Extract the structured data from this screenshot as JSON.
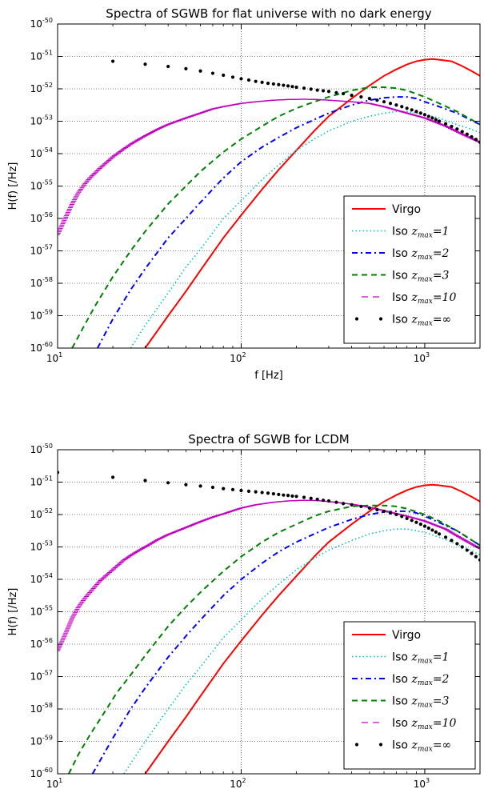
{
  "chart_data": [
    {
      "type": "line",
      "title": "Spectra of SGWB for flat universe with no dark energy",
      "xlabel": "f [Hz]",
      "ylabel": "H(f) [/Hz]",
      "xscale": "log",
      "yscale": "log",
      "xlim": [
        10,
        2000
      ],
      "ylim": [
        1e-60,
        1e-50
      ],
      "grid": true,
      "legend_position": "lower right",
      "x_ticks": [
        {
          "value": 10,
          "base": "10",
          "exp": "1"
        },
        {
          "value": 100,
          "base": "10",
          "exp": "2"
        },
        {
          "value": 1000,
          "base": "10",
          "exp": "3"
        }
      ],
      "y_ticks": [
        {
          "value": -60,
          "base": "10",
          "exp": "-60"
        },
        {
          "value": -59,
          "base": "10",
          "exp": "-59"
        },
        {
          "value": -58,
          "base": "10",
          "exp": "-58"
        },
        {
          "value": -57,
          "base": "10",
          "exp": "-57"
        },
        {
          "value": -56,
          "base": "10",
          "exp": "-56"
        },
        {
          "value": -55,
          "base": "10",
          "exp": "-55"
        },
        {
          "value": -54,
          "base": "10",
          "exp": "-54"
        },
        {
          "value": -53,
          "base": "10",
          "exp": "-53"
        },
        {
          "value": -52,
          "base": "10",
          "exp": "-52"
        },
        {
          "value": -51,
          "base": "10",
          "exp": "-51"
        },
        {
          "value": -50,
          "base": "10",
          "exp": "-50"
        }
      ],
      "series": [
        {
          "name": "Virgo",
          "legend_prefix": "Virgo",
          "legend_sub": "",
          "legend_val": "",
          "color": "#ff0000",
          "style": "solid",
          "x": [
            30,
            40,
            50,
            60,
            80,
            100,
            130,
            160,
            200,
            250,
            300,
            400,
            500,
            600,
            700,
            800,
            900,
            1000,
            1100,
            1200,
            1400,
            1600,
            1800,
            2000
          ],
          "y": [
            -60.0,
            -59.0,
            -58.25,
            -57.6,
            -56.6,
            -55.9,
            -55.1,
            -54.5,
            -53.9,
            -53.3,
            -52.85,
            -52.3,
            -51.9,
            -51.6,
            -51.4,
            -51.25,
            -51.15,
            -51.1,
            -51.08,
            -51.1,
            -51.15,
            -51.3,
            -51.45,
            -51.6
          ]
        },
        {
          "name": "Iso zmax=1",
          "legend_prefix": "Iso ",
          "legend_sub": "max",
          "legend_val": "=1",
          "color": "#00bfbf",
          "style": "dotted",
          "x": [
            25,
            30,
            40,
            50,
            60,
            80,
            100,
            130,
            160,
            200,
            250,
            300,
            400,
            500,
            600,
            700,
            800,
            900,
            1000,
            1200,
            1400,
            1700,
            2000
          ],
          "y": [
            -60.0,
            -59.3,
            -58.3,
            -57.5,
            -56.95,
            -56.0,
            -55.45,
            -54.8,
            -54.35,
            -53.9,
            -53.55,
            -53.3,
            -53.0,
            -52.85,
            -52.75,
            -52.7,
            -52.7,
            -52.75,
            -52.8,
            -52.9,
            -53.05,
            -53.2,
            -53.35
          ]
        },
        {
          "name": "Iso zmax=2",
          "legend_prefix": "Iso ",
          "legend_sub": "max",
          "legend_val": "=2",
          "color": "#0000ff",
          "style": "dashdot",
          "x": [
            16.5,
            20,
            25,
            30,
            40,
            50,
            60,
            80,
            100,
            130,
            160,
            200,
            250,
            300,
            400,
            500,
            600,
            700,
            800,
            900,
            1000,
            1200,
            1500,
            2000
          ],
          "y": [
            -60.0,
            -59.1,
            -58.2,
            -57.55,
            -56.6,
            -56.0,
            -55.5,
            -54.75,
            -54.25,
            -53.8,
            -53.5,
            -53.2,
            -52.95,
            -52.75,
            -52.5,
            -52.35,
            -52.28,
            -52.25,
            -52.25,
            -52.3,
            -52.4,
            -52.55,
            -52.75,
            -53.1
          ]
        },
        {
          "name": "Iso zmax=3",
          "legend_prefix": "Iso ",
          "legend_sub": "max",
          "legend_val": "=3",
          "color": "#008000",
          "style": "dashed",
          "x": [
            12,
            14,
            16,
            20,
            25,
            30,
            40,
            50,
            60,
            80,
            100,
            130,
            160,
            200,
            250,
            300,
            400,
            500,
            600,
            700,
            800,
            1000,
            1200,
            1500,
            2000
          ],
          "y": [
            -60.0,
            -59.3,
            -58.7,
            -57.8,
            -57.0,
            -56.4,
            -55.55,
            -55.0,
            -54.55,
            -53.95,
            -53.55,
            -53.15,
            -52.85,
            -52.6,
            -52.4,
            -52.25,
            -52.05,
            -51.95,
            -51.95,
            -51.98,
            -52.05,
            -52.25,
            -52.45,
            -52.7,
            -53.1
          ]
        },
        {
          "name": "Iso zmax=10",
          "legend_prefix": "Iso ",
          "legend_sub": "max",
          "legend_val": "=10",
          "color": "#bf00bf",
          "style": "loosedash",
          "x": [
            10,
            11,
            12,
            13,
            14,
            15,
            17,
            20,
            23,
            26,
            30,
            35,
            40,
            50,
            60,
            70,
            80,
            100,
            120,
            150,
            180,
            220,
            260,
            300,
            400,
            500,
            600,
            800,
            1000,
            1300,
            1600,
            2000
          ],
          "y": [
            -56.5,
            -56.0,
            -55.55,
            -55.2,
            -54.95,
            -54.75,
            -54.45,
            -54.1,
            -53.85,
            -53.65,
            -53.45,
            -53.25,
            -53.1,
            -52.9,
            -52.75,
            -52.62,
            -52.55,
            -52.45,
            -52.4,
            -52.35,
            -52.33,
            -52.32,
            -52.33,
            -52.35,
            -52.4,
            -52.45,
            -52.55,
            -52.75,
            -52.9,
            -53.15,
            -53.4,
            -53.65
          ]
        },
        {
          "name": "Iso zmax=inf",
          "legend_prefix": "Iso ",
          "legend_sub": "max",
          "legend_val": "=∞",
          "color": "#000000",
          "style": "dots",
          "x": [
            20,
            30,
            40,
            50,
            60,
            70,
            80,
            90,
            100,
            110,
            120,
            130,
            140,
            150,
            160,
            170,
            180,
            190,
            200,
            220,
            240,
            260,
            280,
            300,
            330,
            360,
            400,
            450,
            500,
            550,
            600,
            650,
            700,
            750,
            800,
            850,
            900,
            950,
            1000,
            1050,
            1100,
            1150,
            1200,
            1300,
            1400,
            1500,
            1600,
            1700,
            1800,
            1900,
            2000
          ],
          "y": [
            -51.15,
            -51.24,
            -51.31,
            -51.38,
            -51.45,
            -51.52,
            -51.58,
            -51.64,
            -51.69,
            -51.73,
            -51.77,
            -51.8,
            -51.83,
            -51.85,
            -51.87,
            -51.89,
            -51.91,
            -51.93,
            -51.95,
            -51.98,
            -52.01,
            -52.04,
            -52.06,
            -52.08,
            -52.12,
            -52.15,
            -52.2,
            -52.25,
            -52.3,
            -52.35,
            -52.4,
            -52.45,
            -52.5,
            -52.55,
            -52.6,
            -52.65,
            -52.7,
            -52.75,
            -52.8,
            -52.85,
            -52.9,
            -52.95,
            -53.0,
            -53.08,
            -53.16,
            -53.24,
            -53.32,
            -53.4,
            -53.48,
            -53.56,
            -53.65
          ]
        }
      ]
    },
    {
      "type": "line",
      "title": "Spectra of SGWB for LCDM",
      "xlabel": "f [Hz]",
      "ylabel": "H(f) [/Hz]",
      "xscale": "log",
      "yscale": "log",
      "xlim": [
        10,
        2000
      ],
      "ylim": [
        1e-60,
        1e-50
      ],
      "grid": true,
      "legend_position": "lower right",
      "x_ticks": [
        {
          "value": 10,
          "base": "10",
          "exp": "1"
        },
        {
          "value": 100,
          "base": "10",
          "exp": "2"
        },
        {
          "value": 1000,
          "base": "10",
          "exp": "3"
        }
      ],
      "y_ticks": [
        {
          "value": -60,
          "base": "10",
          "exp": "-60"
        },
        {
          "value": -59,
          "base": "10",
          "exp": "-59"
        },
        {
          "value": -58,
          "base": "10",
          "exp": "-58"
        },
        {
          "value": -57,
          "base": "10",
          "exp": "-57"
        },
        {
          "value": -56,
          "base": "10",
          "exp": "-56"
        },
        {
          "value": -55,
          "base": "10",
          "exp": "-55"
        },
        {
          "value": -54,
          "base": "10",
          "exp": "-54"
        },
        {
          "value": -53,
          "base": "10",
          "exp": "-53"
        },
        {
          "value": -52,
          "base": "10",
          "exp": "-52"
        },
        {
          "value": -51,
          "base": "10",
          "exp": "-51"
        },
        {
          "value": -50,
          "base": "10",
          "exp": "-50"
        }
      ],
      "series": [
        {
          "name": "Virgo",
          "legend_prefix": "Virgo",
          "legend_sub": "",
          "legend_val": "",
          "color": "#ff0000",
          "style": "solid",
          "x": [
            30,
            40,
            50,
            60,
            80,
            100,
            130,
            160,
            200,
            250,
            300,
            400,
            500,
            600,
            700,
            800,
            900,
            1000,
            1100,
            1200,
            1400,
            1600,
            1800,
            2000
          ],
          "y": [
            -60.0,
            -59.0,
            -58.25,
            -57.6,
            -56.6,
            -55.9,
            -55.1,
            -54.5,
            -53.9,
            -53.3,
            -52.85,
            -52.3,
            -51.9,
            -51.6,
            -51.4,
            -51.25,
            -51.15,
            -51.1,
            -51.08,
            -51.1,
            -51.15,
            -51.3,
            -51.45,
            -51.6
          ]
        },
        {
          "name": "Iso zmax=1",
          "legend_prefix": "Iso ",
          "legend_sub": "max",
          "legend_val": "=1",
          "color": "#00bfbf",
          "style": "dotted",
          "x": [
            23,
            30,
            40,
            50,
            60,
            80,
            100,
            130,
            160,
            200,
            250,
            300,
            400,
            500,
            600,
            700,
            800,
            900,
            1000,
            1200,
            1400,
            1700,
            2000
          ],
          "y": [
            -60.0,
            -59.0,
            -58.0,
            -57.25,
            -56.7,
            -55.8,
            -55.25,
            -54.6,
            -54.15,
            -53.7,
            -53.35,
            -53.1,
            -52.8,
            -52.6,
            -52.5,
            -52.45,
            -52.45,
            -52.5,
            -52.55,
            -52.7,
            -52.85,
            -53.05,
            -53.25
          ]
        },
        {
          "name": "Iso zmax=2",
          "legend_prefix": "Iso ",
          "legend_sub": "max",
          "legend_val": "=2",
          "color": "#0000ff",
          "style": "dashdot",
          "x": [
            15.5,
            20,
            25,
            30,
            40,
            50,
            60,
            80,
            100,
            130,
            160,
            200,
            250,
            300,
            400,
            500,
            600,
            700,
            800,
            900,
            1000,
            1200,
            1500,
            2000
          ],
          "y": [
            -60.0,
            -58.9,
            -58.0,
            -57.35,
            -56.4,
            -55.75,
            -55.25,
            -54.5,
            -54.0,
            -53.5,
            -53.15,
            -52.85,
            -52.6,
            -52.4,
            -52.15,
            -52.0,
            -51.92,
            -51.9,
            -51.9,
            -51.95,
            -52.05,
            -52.25,
            -52.5,
            -52.95
          ]
        },
        {
          "name": "Iso zmax=3",
          "legend_prefix": "Iso ",
          "legend_sub": "max",
          "legend_val": "=3",
          "color": "#008000",
          "style": "dashed",
          "x": [
            11.5,
            13,
            15,
            18,
            21,
            25,
            30,
            40,
            50,
            60,
            80,
            100,
            130,
            160,
            200,
            250,
            300,
            400,
            500,
            600,
            700,
            800,
            1000,
            1200,
            1500,
            2000
          ],
          "y": [
            -60.0,
            -59.4,
            -58.8,
            -58.1,
            -57.5,
            -56.95,
            -56.35,
            -55.45,
            -54.85,
            -54.4,
            -53.75,
            -53.3,
            -52.85,
            -52.55,
            -52.3,
            -52.05,
            -51.9,
            -51.75,
            -51.72,
            -51.72,
            -51.75,
            -51.82,
            -52.0,
            -52.2,
            -52.5,
            -52.95
          ]
        },
        {
          "name": "Iso zmax=10",
          "legend_prefix": "Iso ",
          "legend_sub": "max",
          "legend_val": "=10",
          "color": "#bf00bf",
          "style": "loosedash",
          "x": [
            10,
            11,
            12,
            13,
            14,
            15,
            17,
            20,
            23,
            26,
            30,
            35,
            40,
            50,
            60,
            70,
            80,
            100,
            120,
            150,
            180,
            220,
            260,
            300,
            400,
            500,
            600,
            800,
            1000,
            1300,
            1600,
            2000
          ],
          "y": [
            -56.2,
            -55.7,
            -55.2,
            -54.85,
            -54.6,
            -54.4,
            -54.05,
            -53.7,
            -53.4,
            -53.2,
            -53.0,
            -52.78,
            -52.62,
            -52.4,
            -52.22,
            -52.08,
            -51.98,
            -51.8,
            -51.7,
            -51.62,
            -51.58,
            -51.56,
            -51.57,
            -51.6,
            -51.68,
            -51.78,
            -51.88,
            -52.05,
            -52.2,
            -52.45,
            -52.75,
            -53.05
          ]
        },
        {
          "name": "Iso zmax=inf",
          "legend_prefix": "Iso ",
          "legend_sub": "max",
          "legend_val": "=∞",
          "color": "#000000",
          "style": "dots",
          "x": [
            10,
            20,
            30,
            40,
            50,
            60,
            70,
            80,
            90,
            100,
            110,
            120,
            130,
            140,
            150,
            160,
            170,
            180,
            190,
            200,
            220,
            240,
            260,
            280,
            300,
            330,
            360,
            400,
            450,
            500,
            550,
            600,
            650,
            700,
            750,
            800,
            850,
            900,
            950,
            1000,
            1050,
            1100,
            1150,
            1200,
            1300,
            1400,
            1500,
            1600,
            1700,
            1800,
            1900,
            2000
          ],
          "y": [
            -50.7,
            -50.85,
            -50.95,
            -51.02,
            -51.08,
            -51.12,
            -51.16,
            -51.2,
            -51.23,
            -51.26,
            -51.28,
            -51.3,
            -51.32,
            -51.34,
            -51.36,
            -51.38,
            -51.4,
            -51.41,
            -51.43,
            -51.44,
            -51.47,
            -51.5,
            -51.53,
            -51.56,
            -51.58,
            -51.62,
            -51.66,
            -51.7,
            -51.75,
            -51.8,
            -51.85,
            -51.9,
            -51.95,
            -52.0,
            -52.06,
            -52.12,
            -52.18,
            -52.24,
            -52.3,
            -52.36,
            -52.42,
            -52.48,
            -52.54,
            -52.6,
            -52.7,
            -52.8,
            -52.9,
            -53.0,
            -53.1,
            -53.2,
            -53.3,
            -53.4
          ]
        }
      ]
    }
  ]
}
